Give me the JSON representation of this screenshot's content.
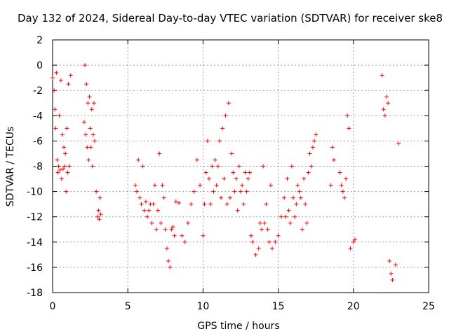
{
  "chart_data": {
    "type": "scatter",
    "title": "Day 132 of 2024, Sidereal Day-to-day VTEC variation (SDTVAR) for receiver ske8",
    "xlabel": "GPS time / hours",
    "ylabel": "SDTVAR / TECUs",
    "xlim": [
      0,
      25
    ],
    "ylim": [
      -18,
      2
    ],
    "xticks": [
      0,
      5,
      10,
      15,
      20,
      25
    ],
    "yticks": [
      2,
      0,
      -2,
      -4,
      -6,
      -8,
      -10,
      -12,
      -14,
      -16,
      -18
    ],
    "xtick_labels": [
      "0",
      "5",
      "10",
      "15",
      "20",
      "25"
    ],
    "ytick_labels": [
      "2",
      "0",
      "-2",
      "-4",
      "-6",
      "-8",
      "-10",
      "-12",
      "-14",
      "-16",
      "-18"
    ],
    "grid": true,
    "marker": "+",
    "color": "#ff0000",
    "series": [
      {
        "name": "SDTVAR",
        "x": [
          0.0,
          0.1,
          0.15,
          0.2,
          0.25,
          0.3,
          0.35,
          0.4,
          0.45,
          0.5,
          0.55,
          0.6,
          0.65,
          0.7,
          0.75,
          0.8,
          0.85,
          0.9,
          0.95,
          1.0,
          1.05,
          1.1,
          1.2,
          2.1,
          2.15,
          2.2,
          2.25,
          2.3,
          2.35,
          2.4,
          2.45,
          2.5,
          2.55,
          2.6,
          2.65,
          2.7,
          2.75,
          2.8,
          2.9,
          3.0,
          3.05,
          3.1,
          3.15,
          3.2,
          5.5,
          5.6,
          5.7,
          5.8,
          5.9,
          6.0,
          6.1,
          6.2,
          6.3,
          6.4,
          6.5,
          6.6,
          6.7,
          6.8,
          6.9,
          7.0,
          7.1,
          7.2,
          7.3,
          7.4,
          7.5,
          7.6,
          7.7,
          7.8,
          7.9,
          8.0,
          8.1,
          8.2,
          8.4,
          8.6,
          8.8,
          9.0,
          9.2,
          9.4,
          9.6,
          9.8,
          10.0,
          10.1,
          10.2,
          10.3,
          10.4,
          10.5,
          10.6,
          10.7,
          10.8,
          10.9,
          11.0,
          11.1,
          11.2,
          11.3,
          11.4,
          11.5,
          11.6,
          11.7,
          11.8,
          11.9,
          12.0,
          12.1,
          12.2,
          12.3,
          12.4,
          12.5,
          12.6,
          12.7,
          12.8,
          12.9,
          13.0,
          13.1,
          13.2,
          13.3,
          13.5,
          13.7,
          13.8,
          13.9,
          14.0,
          14.1,
          14.2,
          14.3,
          14.4,
          14.5,
          14.6,
          14.8,
          15.0,
          15.2,
          15.4,
          15.5,
          15.6,
          15.7,
          15.8,
          15.9,
          16.0,
          16.1,
          16.2,
          16.3,
          16.4,
          16.5,
          16.6,
          16.7,
          16.8,
          16.9,
          17.0,
          17.1,
          17.2,
          17.3,
          17.4,
          17.5,
          18.5,
          18.6,
          18.7,
          19.1,
          19.2,
          19.3,
          19.4,
          19.5,
          19.6,
          19.7,
          19.8,
          20.0,
          20.1,
          21.9,
          22.0,
          22.1,
          22.2,
          22.3,
          22.4,
          22.5,
          22.6,
          22.8,
          23.0
        ],
        "y": [
          -1.0,
          -2.0,
          -3.5,
          -5.0,
          -0.6,
          -7.5,
          -8.5,
          -8.0,
          -4.0,
          -8.3,
          -1.2,
          -9.0,
          -5.5,
          -8.2,
          -6.5,
          -8.0,
          -7.0,
          -10.0,
          -5.0,
          -8.5,
          -1.5,
          -8.0,
          -0.8,
          -4.5,
          0.0,
          -5.5,
          -1.5,
          -6.5,
          -3.0,
          -7.5,
          -2.5,
          -5.0,
          -6.5,
          -3.5,
          -8.0,
          -5.5,
          -3.0,
          -6.0,
          -10.0,
          -12.0,
          -11.5,
          -12.2,
          -10.5,
          -11.8,
          -9.5,
          -10.0,
          -7.5,
          -10.5,
          -11.0,
          -8.0,
          -11.5,
          -10.8,
          -12.0,
          -11.5,
          -11.0,
          -12.5,
          -11.0,
          -9.5,
          -13.0,
          -11.5,
          -7.0,
          -12.5,
          -9.5,
          -10.5,
          -13.0,
          -14.5,
          -15.5,
          -16.0,
          -13.0,
          -12.8,
          -13.5,
          -10.8,
          -10.9,
          -13.5,
          -14.0,
          -12.5,
          -11.0,
          -10.0,
          -7.5,
          -9.5,
          -13.5,
          -11.0,
          -8.5,
          -6.0,
          -9.0,
          -11.0,
          -8.0,
          -10.0,
          -7.5,
          -9.5,
          -8.0,
          -6.0,
          -10.5,
          -5.0,
          -9.0,
          -4.0,
          -11.0,
          -3.0,
          -10.5,
          -7.0,
          -8.5,
          -10.0,
          -9.0,
          -11.5,
          -8.0,
          -10.0,
          -9.5,
          -11.0,
          -8.5,
          -10.0,
          -9.0,
          -8.5,
          -13.5,
          -14.0,
          -15.0,
          -14.5,
          -12.5,
          -13.0,
          -8.0,
          -12.5,
          -11.0,
          -13.0,
          -14.0,
          -9.5,
          -14.5,
          -14.0,
          -13.5,
          -12.0,
          -10.5,
          -12.0,
          -9.0,
          -11.5,
          -12.5,
          -8.0,
          -10.5,
          -12.0,
          -11.0,
          -9.5,
          -10.0,
          -10.5,
          -13.0,
          -9.0,
          -11.0,
          -12.5,
          -8.5,
          -7.0,
          -8.0,
          -6.5,
          -6.0,
          -5.5,
          -9.5,
          -6.5,
          -7.5,
          -8.5,
          -9.5,
          -10.0,
          -10.5,
          -9.0,
          -4.0,
          -5.0,
          -14.5,
          -14.0,
          -13.8,
          -0.8,
          -3.5,
          -4.0,
          -2.5,
          -3.0,
          -15.5,
          -16.5,
          -17.0,
          -15.8,
          -6.2
        ]
      }
    ]
  }
}
